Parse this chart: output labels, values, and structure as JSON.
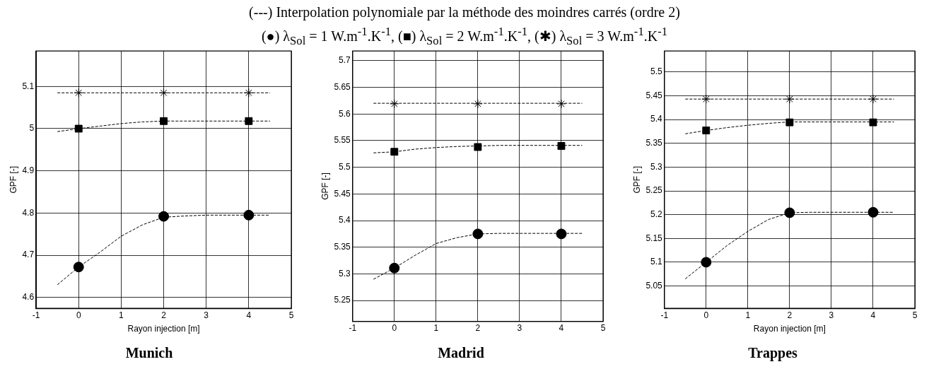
{
  "chart_data": [
    {
      "type": "scatter",
      "title": "Munich",
      "annotations": [
        "(---) Interpolation polynomiale par la méthode des moindres carrés (ordre 2)",
        "(●) λ$_{Sol}$ = 1 W.m$^{-1}$.K$^{-1}$, (■) λ$_{Sol}$ = 2 W.m$^{-1}$.K$^{-1}$, (✱) λ$_{Sol}$ = 3 W.m$^{-1}$.K$^{-1}$"
      ],
      "xlabel": "Rayon injection [m]",
      "ylabel": "GPF [-]",
      "x": [
        0,
        2,
        4
      ],
      "series": [
        {
          "type": "line",
          "color": "#000000",
          "marker": "none",
          "line_style": "dashed",
          "x": [
            -0.5,
            0,
            0.5,
            1,
            1.5,
            2,
            2.5,
            3,
            3.5,
            4,
            4.5
          ],
          "values": [
            4.63,
            4.672,
            4.707,
            4.745,
            4.772,
            4.79,
            4.793,
            4.795,
            4.795,
            4.795,
            4.795
          ]
        },
        {
          "type": "line",
          "color": "#000000",
          "marker": "none",
          "line_style": "dashed",
          "x": [
            -0.5,
            0,
            0.5,
            1,
            1.5,
            2,
            2.5,
            3,
            3.5,
            4,
            4.5
          ],
          "values": [
            4.993,
            5.0,
            5.006,
            5.012,
            5.016,
            5.018,
            5.018,
            5.018,
            5.018,
            5.018,
            5.018
          ]
        },
        {
          "type": "line",
          "color": "#000000",
          "marker": "none",
          "line_style": "dashed",
          "x": [
            -0.5,
            0,
            0.5,
            1,
            1.5,
            2,
            2.5,
            3,
            3.5,
            4,
            4.5
          ],
          "values": [
            5.085,
            5.085,
            5.085,
            5.085,
            5.085,
            5.085,
            5.085,
            5.085,
            5.085,
            5.085,
            5.085
          ]
        },
        {
          "color": "#000000",
          "marker": "circle",
          "values": [
            4.672,
            4.792,
            4.795
          ]
        },
        {
          "color": "#000000",
          "marker": "square",
          "values": [
            5.0,
            5.018,
            5.018
          ]
        },
        {
          "color": "#000000",
          "marker": "cross",
          "values": [
            5.085,
            5.085,
            5.085
          ]
        }
      ],
      "xlim": [
        -1,
        5
      ],
      "xticks": [
        -1,
        0,
        1,
        2,
        3,
        4,
        5
      ],
      "ylim": [
        4.574,
        5.184
      ],
      "yticks": [
        4.6,
        4.7,
        4.8,
        4.9,
        5,
        5.1
      ],
      "grid": true
    },
    {
      "type": "scatter",
      "title": "Madrid",
      "ylabel": "GPF [-]",
      "x": [
        0,
        2,
        4
      ],
      "series": [
        {
          "type": "line",
          "color": "#000000",
          "marker": "none",
          "line_style": "dashed",
          "x": [
            -0.5,
            0,
            0.5,
            1,
            1.5,
            2,
            2.5,
            3,
            3.5,
            4,
            4.5
          ],
          "values": [
            5.29,
            5.311,
            5.335,
            5.357,
            5.368,
            5.375,
            5.376,
            5.376,
            5.376,
            5.376,
            5.376
          ]
        },
        {
          "type": "line",
          "color": "#000000",
          "marker": "none",
          "line_style": "dashed",
          "x": [
            -0.5,
            0,
            0.5,
            1,
            1.5,
            2,
            2.5,
            3,
            3.5,
            4,
            4.5
          ],
          "values": [
            5.527,
            5.529,
            5.534,
            5.537,
            5.539,
            5.54,
            5.541,
            5.541,
            5.541,
            5.541,
            5.541
          ]
        },
        {
          "type": "line",
          "color": "#000000",
          "marker": "none",
          "line_style": "dashed",
          "x": [
            -0.5,
            0,
            0.5,
            1,
            1.5,
            2,
            2.5,
            3,
            3.5,
            4,
            4.5
          ],
          "values": [
            5.62,
            5.62,
            5.62,
            5.62,
            5.62,
            5.62,
            5.62,
            5.62,
            5.62,
            5.62,
            5.62
          ]
        },
        {
          "color": "#000000",
          "marker": "circle",
          "values": [
            5.311,
            5.375,
            5.375
          ]
        },
        {
          "color": "#000000",
          "marker": "square",
          "values": [
            5.529,
            5.538,
            5.54
          ]
        },
        {
          "color": "#000000",
          "marker": "cross",
          "values": [
            5.619,
            5.619,
            5.619
          ]
        }
      ],
      "xlim": [
        -1,
        5
      ],
      "xticks": [
        -1,
        0,
        1,
        2,
        3,
        4,
        5
      ],
      "ylim": [
        5.211,
        5.718
      ],
      "yticks": [
        5.25,
        5.3,
        5.35,
        5.4,
        5.45,
        5.5,
        5.55,
        5.6,
        5.65,
        5.7
      ],
      "grid": true
    },
    {
      "type": "scatter",
      "title": "Trappes",
      "xlabel": "Rayon injection [m]",
      "ylabel": "GPF [-]",
      "x": [
        0,
        2,
        4
      ],
      "series": [
        {
          "type": "line",
          "color": "#000000",
          "marker": "none",
          "line_style": "dashed",
          "x": [
            -0.5,
            0,
            0.5,
            1,
            1.5,
            2,
            2.5,
            3,
            3.5,
            4,
            4.5
          ],
          "values": [
            5.065,
            5.1,
            5.135,
            5.165,
            5.19,
            5.204,
            5.205,
            5.205,
            5.205,
            5.205,
            5.205
          ]
        },
        {
          "type": "line",
          "color": "#000000",
          "marker": "none",
          "line_style": "dashed",
          "x": [
            -0.5,
            0,
            0.5,
            1,
            1.5,
            2,
            2.5,
            3,
            3.5,
            4,
            4.5
          ],
          "values": [
            5.37,
            5.377,
            5.383,
            5.388,
            5.392,
            5.395,
            5.395,
            5.395,
            5.395,
            5.395,
            5.395
          ]
        },
        {
          "type": "line",
          "color": "#000000",
          "marker": "none",
          "line_style": "dashed",
          "x": [
            -0.5,
            0,
            0.5,
            1,
            1.5,
            2,
            2.5,
            3,
            3.5,
            4,
            4.5
          ],
          "values": [
            5.443,
            5.443,
            5.443,
            5.443,
            5.443,
            5.443,
            5.443,
            5.443,
            5.443,
            5.443,
            5.443
          ]
        },
        {
          "color": "#000000",
          "marker": "circle",
          "values": [
            5.1,
            5.204,
            5.205
          ]
        },
        {
          "color": "#000000",
          "marker": "square",
          "values": [
            5.377,
            5.394,
            5.394
          ]
        },
        {
          "color": "#000000",
          "marker": "cross",
          "values": [
            5.443,
            5.443,
            5.443
          ]
        }
      ],
      "xlim": [
        -1,
        5
      ],
      "xticks": [
        -1,
        0,
        1,
        2,
        3,
        4,
        5
      ],
      "ylim": [
        5.003,
        5.544
      ],
      "yticks": [
        5.05,
        5.1,
        5.15,
        5.2,
        5.25,
        5.3,
        5.35,
        5.4,
        5.45,
        5.5
      ],
      "grid": true
    }
  ]
}
